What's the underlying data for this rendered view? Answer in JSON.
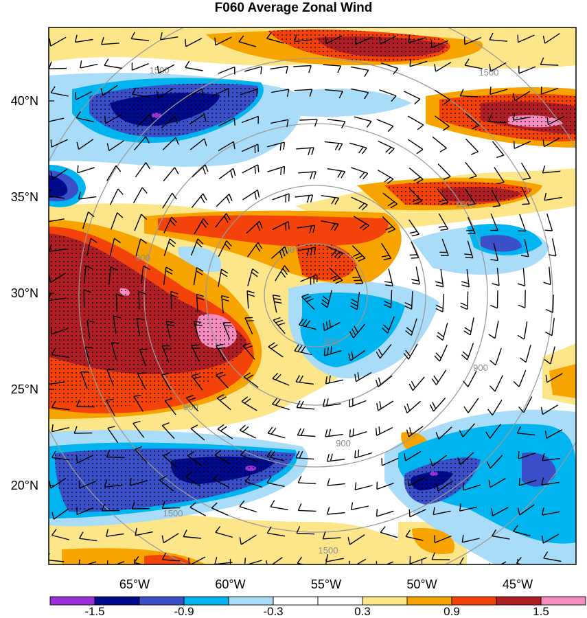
{
  "title": "F060 Average Zonal Wind",
  "map": {
    "lat_labels": [
      "40°N",
      "35°N",
      "30°N",
      "25°N",
      "20°N"
    ],
    "lon_labels": [
      "65°W",
      "60°W",
      "55°W",
      "50°W",
      "45°W"
    ],
    "lat_values": [
      40,
      35,
      30,
      25,
      20
    ],
    "lon_values": [
      -65,
      -60,
      -55,
      -50,
      -45
    ],
    "contour_labels": [
      "300",
      "300",
      "900",
      "900",
      "900",
      "900",
      "1500",
      "1500",
      "1500",
      "1500",
      "1500"
    ],
    "stipple": "dotted hatching marks significant regions"
  },
  "colorbar": {
    "colors": [
      "#9b30d8",
      "#000a8a",
      "#3a4fc8",
      "#00b4f0",
      "#a8dcf8",
      "#ffffff",
      "#ffffff",
      "#fde68a",
      "#f7a300",
      "#f4430a",
      "#b01e25",
      "#f48cc0"
    ],
    "tick_labels": [
      "-1.5",
      "-0.9",
      "-0.3",
      "0.3",
      "0.9",
      "1.5"
    ],
    "tick_positions": [
      1,
      3,
      5,
      7,
      9,
      11
    ]
  },
  "colors": {
    "circle": "#9a9a9a",
    "barb": "#000000"
  }
}
